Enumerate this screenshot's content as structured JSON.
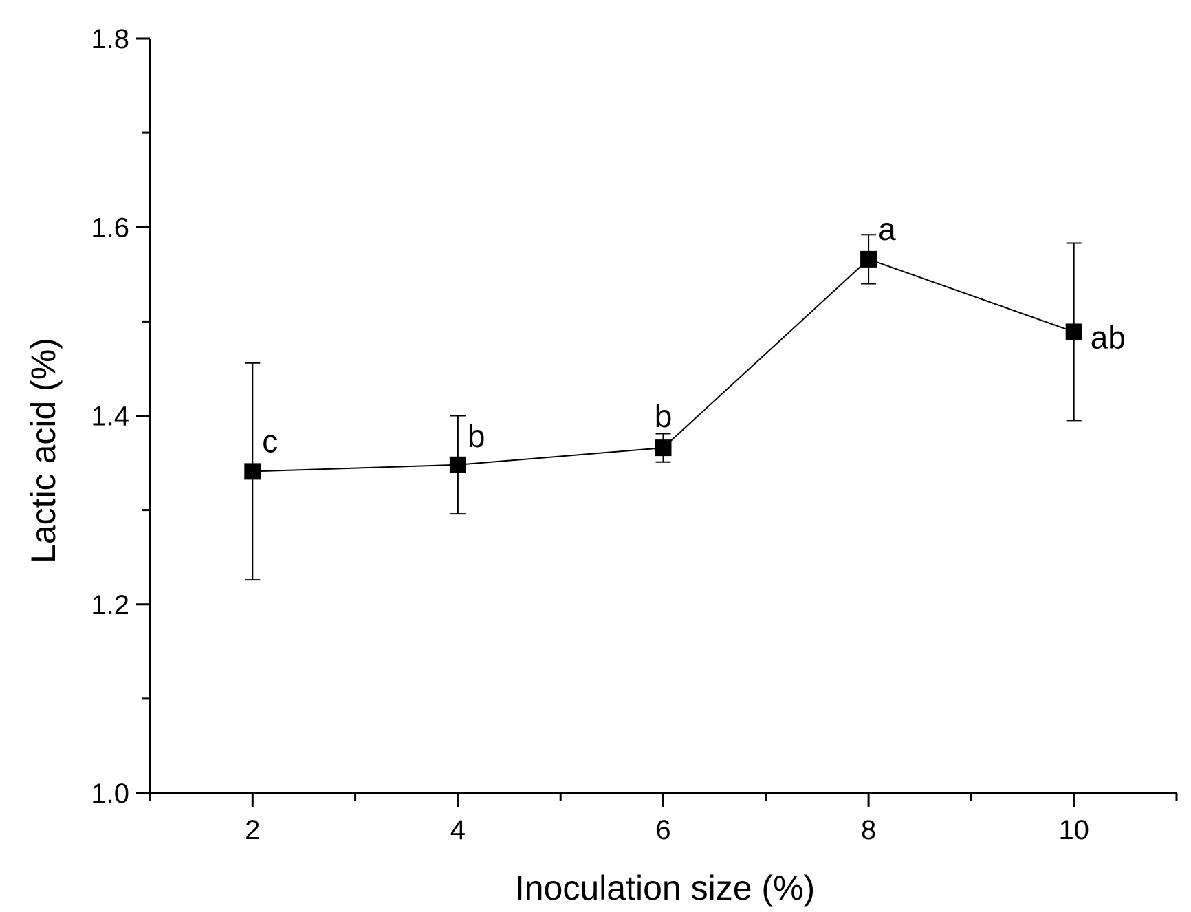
{
  "chart_data": {
    "type": "line",
    "title": "",
    "xlabel": "Inoculation size (%)",
    "ylabel": "Lactic acid (%)",
    "xlim": [
      1,
      11
    ],
    "ylim": [
      1.0,
      1.8
    ],
    "x_ticks_major": [
      2,
      4,
      6,
      8,
      10
    ],
    "x_ticks_minor": [
      1,
      3,
      5,
      7,
      9,
      11
    ],
    "x_tick_labels": [
      "2",
      "4",
      "6",
      "8",
      "10"
    ],
    "y_ticks_major": [
      1.0,
      1.2,
      1.4,
      1.6,
      1.8
    ],
    "y_ticks_minor": [
      1.1,
      1.3,
      1.5,
      1.7
    ],
    "y_tick_labels": [
      "1.0",
      "1.2",
      "1.4",
      "1.6",
      "1.8"
    ],
    "grid": false,
    "series": [
      {
        "name": "Lactic acid",
        "x": [
          2,
          4,
          6,
          8,
          10
        ],
        "values": [
          1.341,
          1.348,
          1.366,
          1.566,
          1.489
        ],
        "error": [
          0.115,
          0.052,
          0.015,
          0.026,
          0.094
        ],
        "labels": [
          "c",
          "b",
          "b",
          "a",
          "ab"
        ],
        "color": "#000000",
        "marker": "square"
      }
    ]
  }
}
